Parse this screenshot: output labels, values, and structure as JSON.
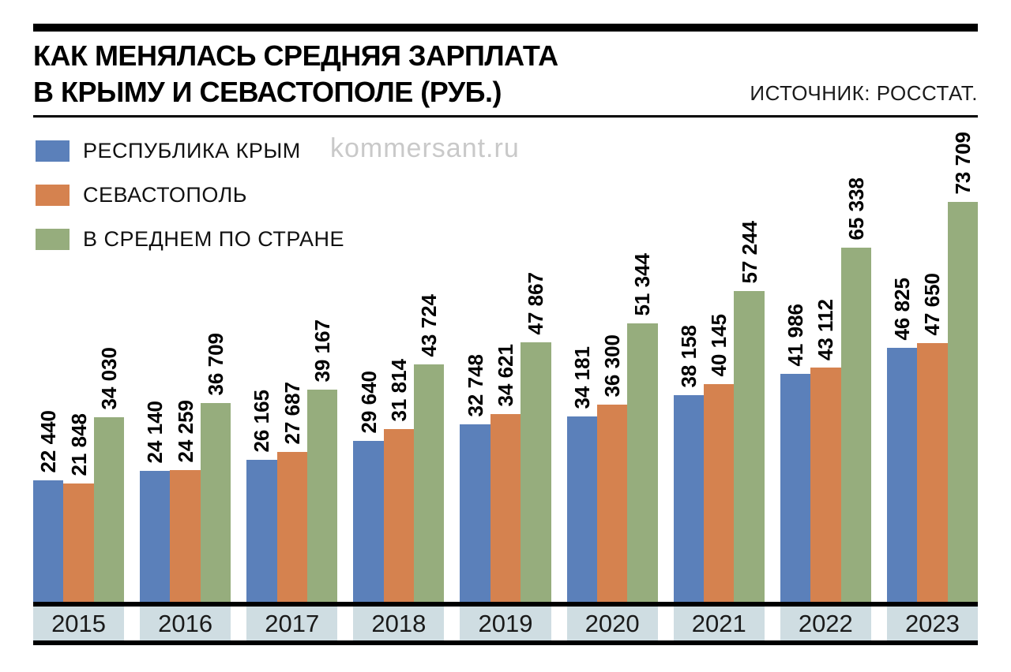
{
  "header": {
    "title_line1": "КАК МЕНЯЛАСЬ СРЕДНЯЯ ЗАРПЛАТА",
    "title_line2": "В КРЫМУ И СЕВАСТОПОЛЕ (РУБ.)",
    "source": "ИСТОЧНИК: РОССТАТ.",
    "watermark": "kommersant.ru"
  },
  "legend": [
    {
      "label": "РЕСПУБЛИКА КРЫМ",
      "color": "#5b80ba"
    },
    {
      "label": "СЕВАСТОПОЛЬ",
      "color": "#d5824f"
    },
    {
      "label": "В СРЕДНЕМ ПО СТРАНЕ",
      "color": "#96ad7d"
    }
  ],
  "colors": {
    "crimea_blue": "#5b80ba",
    "sevastopol_orange": "#d5824f",
    "country_green": "#96ad7d",
    "axis_band": "#cfdde2",
    "line_black": "#000000",
    "watermark_gray": "#c9c9c9"
  },
  "chart_data": {
    "type": "bar",
    "title": "КАК МЕНЯЛАСЬ СРЕДНЯЯ ЗАРПЛАТА В КРЫМУ И СЕВАСТОПОЛЕ (РУБ.)",
    "xlabel": "",
    "ylabel": "",
    "ylim": [
      0,
      73709
    ],
    "grid": false,
    "legend_position": "top-left",
    "value_label_rotation": -90,
    "categories": [
      "2015",
      "2016",
      "2017",
      "2018",
      "2019",
      "2020",
      "2021",
      "2022",
      "2023"
    ],
    "series": [
      {
        "name": "РЕСПУБЛИКА КРЫМ",
        "color": "#5b80ba",
        "values": [
          22440,
          24140,
          26165,
          29640,
          32748,
          34181,
          38158,
          41986,
          46825
        ],
        "labels": [
          "22 440",
          "24 140",
          "26 165",
          "29 640",
          "32 748",
          "34 181",
          "38 158",
          "41 986",
          "46 825"
        ]
      },
      {
        "name": "СЕВАСТОПОЛЬ",
        "color": "#d5824f",
        "values": [
          21848,
          24259,
          27687,
          31814,
          34621,
          36300,
          40145,
          43112,
          47650
        ],
        "labels": [
          "21 848",
          "24 259",
          "27 687",
          "31 814",
          "34 621",
          "36 300",
          "40 145",
          "43 112",
          "47 650"
        ]
      },
      {
        "name": "В СРЕДНЕМ ПО СТРАНЕ",
        "color": "#96ad7d",
        "values": [
          34030,
          36709,
          39167,
          43724,
          47867,
          51344,
          57244,
          65338,
          73709
        ],
        "labels": [
          "34 030",
          "36 709",
          "39 167",
          "43 724",
          "47 867",
          "51 344",
          "57 244",
          "65 338",
          "73 709"
        ]
      }
    ]
  }
}
